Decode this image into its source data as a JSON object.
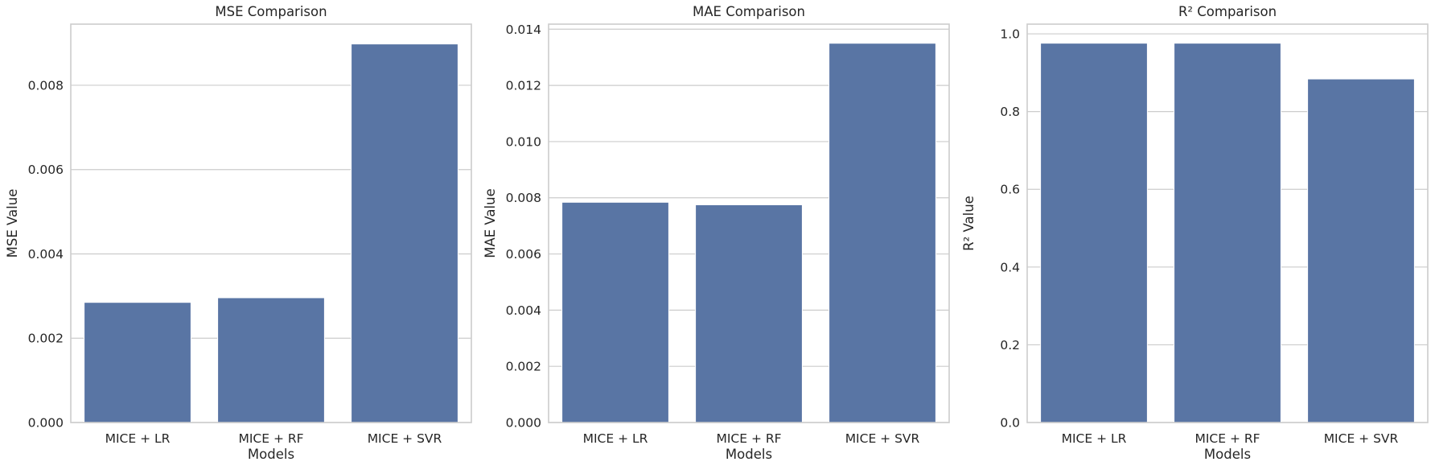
{
  "chart_data": [
    {
      "type": "bar",
      "title": "MSE Comparison",
      "xlabel": "Models",
      "ylabel": "MSE Value",
      "categories": [
        "MICE + LR",
        "MICE + RF",
        "MICE + SVR"
      ],
      "values": [
        0.00285,
        0.00296,
        0.00898
      ],
      "ylim": [
        0,
        0.00945
      ],
      "yticks": [
        0.0,
        0.002,
        0.004,
        0.006,
        0.008
      ],
      "ytick_labels": [
        "0.000",
        "0.002",
        "0.004",
        "0.006",
        "0.008"
      ],
      "grid": true,
      "bar_color": "#5975a4"
    },
    {
      "type": "bar",
      "title": "MAE Comparison",
      "xlabel": "Models",
      "ylabel": "MAE Value",
      "categories": [
        "MICE + LR",
        "MICE + RF",
        "MICE + SVR"
      ],
      "values": [
        0.00784,
        0.00775,
        0.0135
      ],
      "ylim": [
        0,
        0.01418
      ],
      "yticks": [
        0.0,
        0.002,
        0.004,
        0.006,
        0.008,
        0.01,
        0.012,
        0.014
      ],
      "ytick_labels": [
        "0.000",
        "0.002",
        "0.004",
        "0.006",
        "0.008",
        "0.010",
        "0.012",
        "0.014"
      ],
      "grid": true,
      "bar_color": "#5975a4"
    },
    {
      "type": "bar",
      "title": "R² Comparison",
      "xlabel": "Models",
      "ylabel": "R² Value",
      "categories": [
        "MICE + LR",
        "MICE + RF",
        "MICE + SVR"
      ],
      "values": [
        0.976,
        0.976,
        0.884
      ],
      "ylim": [
        0,
        1.025
      ],
      "yticks": [
        0.0,
        0.2,
        0.4,
        0.6,
        0.8,
        1.0
      ],
      "ytick_labels": [
        "0.0",
        "0.2",
        "0.4",
        "0.6",
        "0.8",
        "1.0"
      ],
      "grid": true,
      "bar_color": "#5975a4"
    }
  ]
}
